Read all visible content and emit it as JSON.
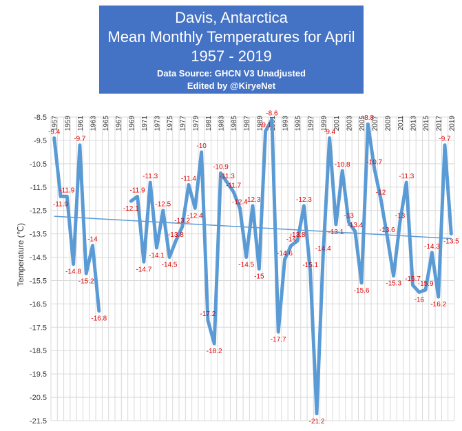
{
  "chart_data": {
    "type": "line",
    "title_lines": [
      "Davis, Antarctica",
      "Mean Monthly Temperatures for April",
      "1957 - 2019"
    ],
    "subtitle_lines": [
      "Data Source: GHCN V3 Unadjusted",
      "Edited by @KiryeNet"
    ],
    "ylabel": "Temperature (℃)",
    "xlabel": "",
    "ylim": [
      -21.5,
      -8.5
    ],
    "yticks": [
      "-8.5",
      "-9.5",
      "-10.5",
      "-11.5",
      "-12.5",
      "-13.5",
      "-14.5",
      "-15.5",
      "-16.5",
      "-17.5",
      "-18.5",
      "-19.5",
      "-20.5",
      "-21.5"
    ],
    "xrange": [
      1957,
      2019
    ],
    "grid": true,
    "series_color": "#5b9bd5",
    "trend_color": "#5b9bd5",
    "label_color": "#e00000",
    "trend": {
      "start": -12.75,
      "end": -13.7
    },
    "x": [
      1957,
      1958,
      1959,
      1960,
      1961,
      1962,
      1963,
      1964,
      1965,
      1966,
      1967,
      1968,
      1969,
      1970,
      1971,
      1972,
      1973,
      1974,
      1975,
      1976,
      1977,
      1978,
      1979,
      1980,
      1981,
      1982,
      1983,
      1984,
      1985,
      1986,
      1987,
      1988,
      1989,
      1990,
      1991,
      1992,
      1993,
      1994,
      1995,
      1996,
      1997,
      1998,
      1999,
      2000,
      2001,
      2002,
      2003,
      2004,
      2005,
      2006,
      2007,
      2008,
      2009,
      2010,
      2011,
      2012,
      2013,
      2014,
      2015,
      2016,
      2017,
      2018,
      2019
    ],
    "y": [
      -9.4,
      -11.9,
      -11.9,
      -14.8,
      -9.7,
      -15.2,
      -14,
      -16.8,
      null,
      null,
      null,
      null,
      -12.1,
      -11.9,
      -14.7,
      -11.3,
      -14.1,
      -12.5,
      -14.5,
      -13.8,
      -13.2,
      -11.4,
      -12.4,
      -10,
      -17.2,
      -18.2,
      -10.9,
      -11.3,
      -11.7,
      -12.4,
      -14.5,
      -12.3,
      -15,
      -9.1,
      -8.6,
      -17.7,
      -14.6,
      -14,
      -13.8,
      -12.3,
      -15.1,
      -21.2,
      -14.4,
      -9.4,
      -13.1,
      -10.8,
      -13,
      -13.4,
      -15.6,
      -8.8,
      -10.7,
      -12,
      -13.6,
      -15.3,
      -13,
      -11.3,
      -15.7,
      -16,
      -15.9,
      -14.3,
      -16.2,
      -9.7,
      -13.5
    ],
    "data_labels": [
      "-9.4",
      "-11.9",
      "-11.9",
      "-14.8",
      "-9.7",
      "-15.2",
      "-14",
      "-16.8",
      "",
      "",
      "",
      "",
      "-12.1",
      "-11.9",
      "-14.7",
      "-11.3",
      "-14.1",
      "-12.5",
      "-14.5",
      "-13.8",
      "-13.2",
      "-11.4",
      "-12.4",
      "-10",
      "-17.2",
      "-18.2",
      "-10.9",
      "-11.3",
      "-11.7",
      "-12.4",
      "-14.5",
      "-12.3",
      "-15",
      "-9.1",
      "-8.6",
      "-17.7",
      "-14.6",
      "-14",
      "-13.8",
      "-12.3",
      "-15.1",
      "-21.2",
      "-14.4",
      "-9.4",
      "-13.1",
      "-10.8",
      "-13",
      "-13.4",
      "-15.6",
      "-8.8",
      "-10.7",
      "-12",
      "-13.6",
      "-15.3",
      "-13",
      "-11.3",
      "-15.7",
      "-16",
      "-15.9",
      "-14.3",
      "-16.2",
      "-9.7",
      "-13.5"
    ]
  }
}
